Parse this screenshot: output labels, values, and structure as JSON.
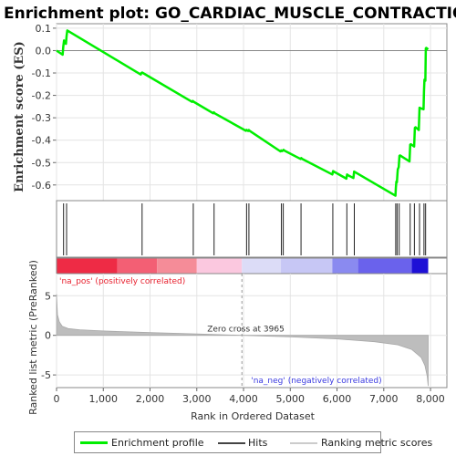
{
  "chart_data": {
    "type": "line",
    "title": "Enrichment plot: GO_CARDIAC_MUSCLE_CONTRACTION",
    "es_panel": {
      "ylabel": "Enrichment score (ES)",
      "ylim": [
        -0.67,
        0.12
      ],
      "yticks": [
        0.1,
        0.0,
        -0.1,
        -0.2,
        -0.3,
        -0.4,
        -0.5,
        -0.6
      ],
      "ytick_labels": [
        "0.1",
        "0.0",
        "-0.1",
        "-0.2",
        "-0.3",
        "-0.4",
        "-0.5",
        "-0.6"
      ],
      "series": [
        {
          "name": "Enrichment profile",
          "color": "#00ee00",
          "x": [
            0,
            130,
            145,
            160,
            200,
            215,
            230,
            1800,
            1815,
            1830,
            2900,
            2915,
            2930,
            3350,
            3365,
            3380,
            4050,
            4065,
            4080,
            4100,
            4115,
            4130,
            4790,
            4805,
            4820,
            4840,
            4855,
            4870,
            5220,
            5235,
            5250,
            5900,
            5915,
            5930,
            6200,
            6215,
            6230,
            6350,
            6365,
            6380,
            7250,
            7260,
            7270,
            7280,
            7295,
            7300,
            7320,
            7335,
            7350,
            7550,
            7565,
            7580,
            7650,
            7665,
            7680,
            7750,
            7765,
            7780,
            7850,
            7860,
            7870,
            7890,
            7900,
            7910,
            7950
          ],
          "y": [
            0.0,
            -0.018,
            0.018,
            0.045,
            0.03,
            0.065,
            0.09,
            -0.107,
            -0.1,
            -0.098,
            -0.229,
            -0.225,
            -0.228,
            -0.28,
            -0.276,
            -0.28,
            -0.358,
            -0.354,
            -0.357,
            -0.359,
            -0.355,
            -0.358,
            -0.45,
            -0.446,
            -0.449,
            -0.447,
            -0.443,
            -0.446,
            -0.484,
            -0.48,
            -0.483,
            -0.553,
            -0.538,
            -0.54,
            -0.572,
            -0.553,
            -0.556,
            -0.569,
            -0.54,
            -0.542,
            -0.648,
            -0.61,
            -0.585,
            -0.588,
            -0.545,
            -0.53,
            -0.52,
            -0.47,
            -0.468,
            -0.495,
            -0.42,
            -0.418,
            -0.428,
            -0.345,
            -0.342,
            -0.355,
            -0.255,
            -0.257,
            -0.262,
            -0.18,
            -0.13,
            -0.135,
            0.01,
            0.012,
            0.005
          ]
        }
      ],
      "zero_line": 0.0
    },
    "hits_panel": {
      "name": "Hits",
      "positions": [
        150,
        215,
        1830,
        2925,
        3370,
        4065,
        4115,
        4810,
        4850,
        5230,
        5910,
        6210,
        6370,
        7255,
        7285,
        7330,
        7565,
        7655,
        7765,
        7860,
        7895
      ]
    },
    "heat_bar": {
      "segments": [
        {
          "from": 0,
          "to": 1300,
          "color": "#ee2b45"
        },
        {
          "from": 1300,
          "to": 2150,
          "color": "#f35f74"
        },
        {
          "from": 2150,
          "to": 3000,
          "color": "#f58c98"
        },
        {
          "from": 3000,
          "to": 3965,
          "color": "#fbc8df"
        },
        {
          "from": 3965,
          "to": 4800,
          "color": "#dcdcf7"
        },
        {
          "from": 4800,
          "to": 5900,
          "color": "#c7c7f5"
        },
        {
          "from": 5900,
          "to": 6450,
          "color": "#8a8af0"
        },
        {
          "from": 6450,
          "to": 7600,
          "color": "#6a62ec"
        },
        {
          "from": 7600,
          "to": 7950,
          "color": "#1e10d6"
        }
      ]
    },
    "metric_panel": {
      "name": "Ranking metric scores",
      "ylabel": "Ranked list metric (PreRanked)",
      "ylim": [
        -6.6,
        7.8
      ],
      "yticks": [
        5,
        0,
        -5
      ],
      "ytick_labels": [
        "5",
        "0",
        "-5"
      ],
      "profile_x": [
        0,
        20,
        60,
        120,
        250,
        500,
        1000,
        2000,
        3000,
        3965,
        5000,
        6000,
        6800,
        7300,
        7600,
        7800,
        7880,
        7930,
        7950
      ],
      "profile_y": [
        5.2,
        2.6,
        1.7,
        1.15,
        0.85,
        0.7,
        0.55,
        0.35,
        0.18,
        0.0,
        -0.2,
        -0.45,
        -0.8,
        -1.2,
        -1.8,
        -2.8,
        -3.8,
        -5.2,
        -6.4
      ],
      "annotations": {
        "pos_label": "'na_pos' (positively correlated)",
        "neg_label": "'na_neg' (negatively correlated)",
        "zero_cross": "Zero cross at 3965",
        "zero_cross_x": 3965,
        "pos_color": "#e8202e",
        "neg_color": "#3a3ae0"
      }
    },
    "x_axis": {
      "xlabel": "Rank in Ordered Dataset",
      "xlim": [
        0,
        8350
      ],
      "xticks": [
        0,
        1000,
        2000,
        3000,
        4000,
        5000,
        6000,
        7000,
        8000
      ],
      "xtick_labels": [
        "0",
        "1,000",
        "2,000",
        "3,000",
        "4,000",
        "5,000",
        "6,000",
        "7,000",
        "8,000"
      ]
    },
    "legend": {
      "placement": "bottom",
      "items": [
        {
          "label": "Enrichment profile",
          "color": "#00ee00"
        },
        {
          "label": "Hits",
          "color": "#444444"
        },
        {
          "label": "Ranking metric scores",
          "color": "#cccccc"
        }
      ]
    }
  }
}
